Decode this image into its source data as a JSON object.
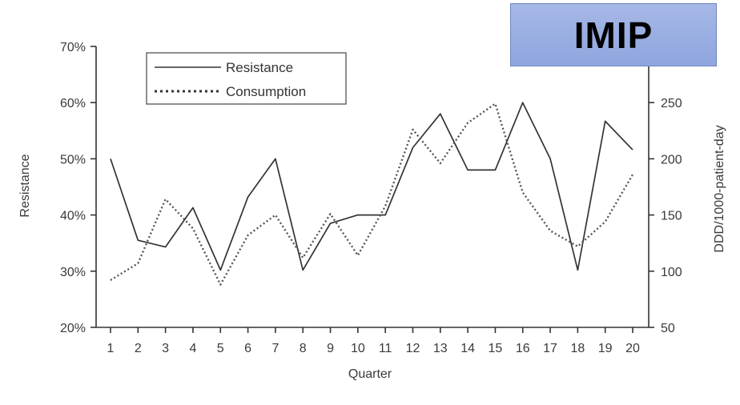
{
  "badge": {
    "text": "IMIP",
    "color": "#98acdf"
  },
  "chart_data": {
    "type": "line",
    "xlabel": "Quarter",
    "ylabel_left": "Resistance",
    "ylabel_right": "DDD/1000-patient-day",
    "x": [
      1,
      2,
      3,
      4,
      5,
      6,
      7,
      8,
      9,
      10,
      11,
      12,
      13,
      14,
      15,
      16,
      17,
      18,
      19,
      20
    ],
    "ylim_left": [
      0.2,
      0.7
    ],
    "yticks_left": [
      "20%",
      "30%",
      "40%",
      "50%",
      "60%",
      "70%"
    ],
    "ylim_right": [
      50,
      300
    ],
    "yticks_right": [
      "50",
      "100",
      "150",
      "200",
      "250"
    ],
    "grid": false,
    "legend_position": "top-left",
    "series": [
      {
        "name": "Resistance",
        "axis": "left",
        "style": "solid",
        "values": [
          0.5,
          0.355,
          0.343,
          0.413,
          0.302,
          0.432,
          0.5,
          0.302,
          0.385,
          0.4,
          0.4,
          0.52,
          0.58,
          0.48,
          0.48,
          0.6,
          0.5,
          0.302,
          0.567,
          0.516
        ]
      },
      {
        "name": "Consumption",
        "axis": "right",
        "style": "dotted",
        "values": [
          92,
          107,
          164,
          138,
          88,
          132,
          150,
          112,
          151,
          114,
          158,
          226,
          196,
          232,
          249,
          170,
          136,
          122,
          144,
          186
        ]
      }
    ]
  }
}
